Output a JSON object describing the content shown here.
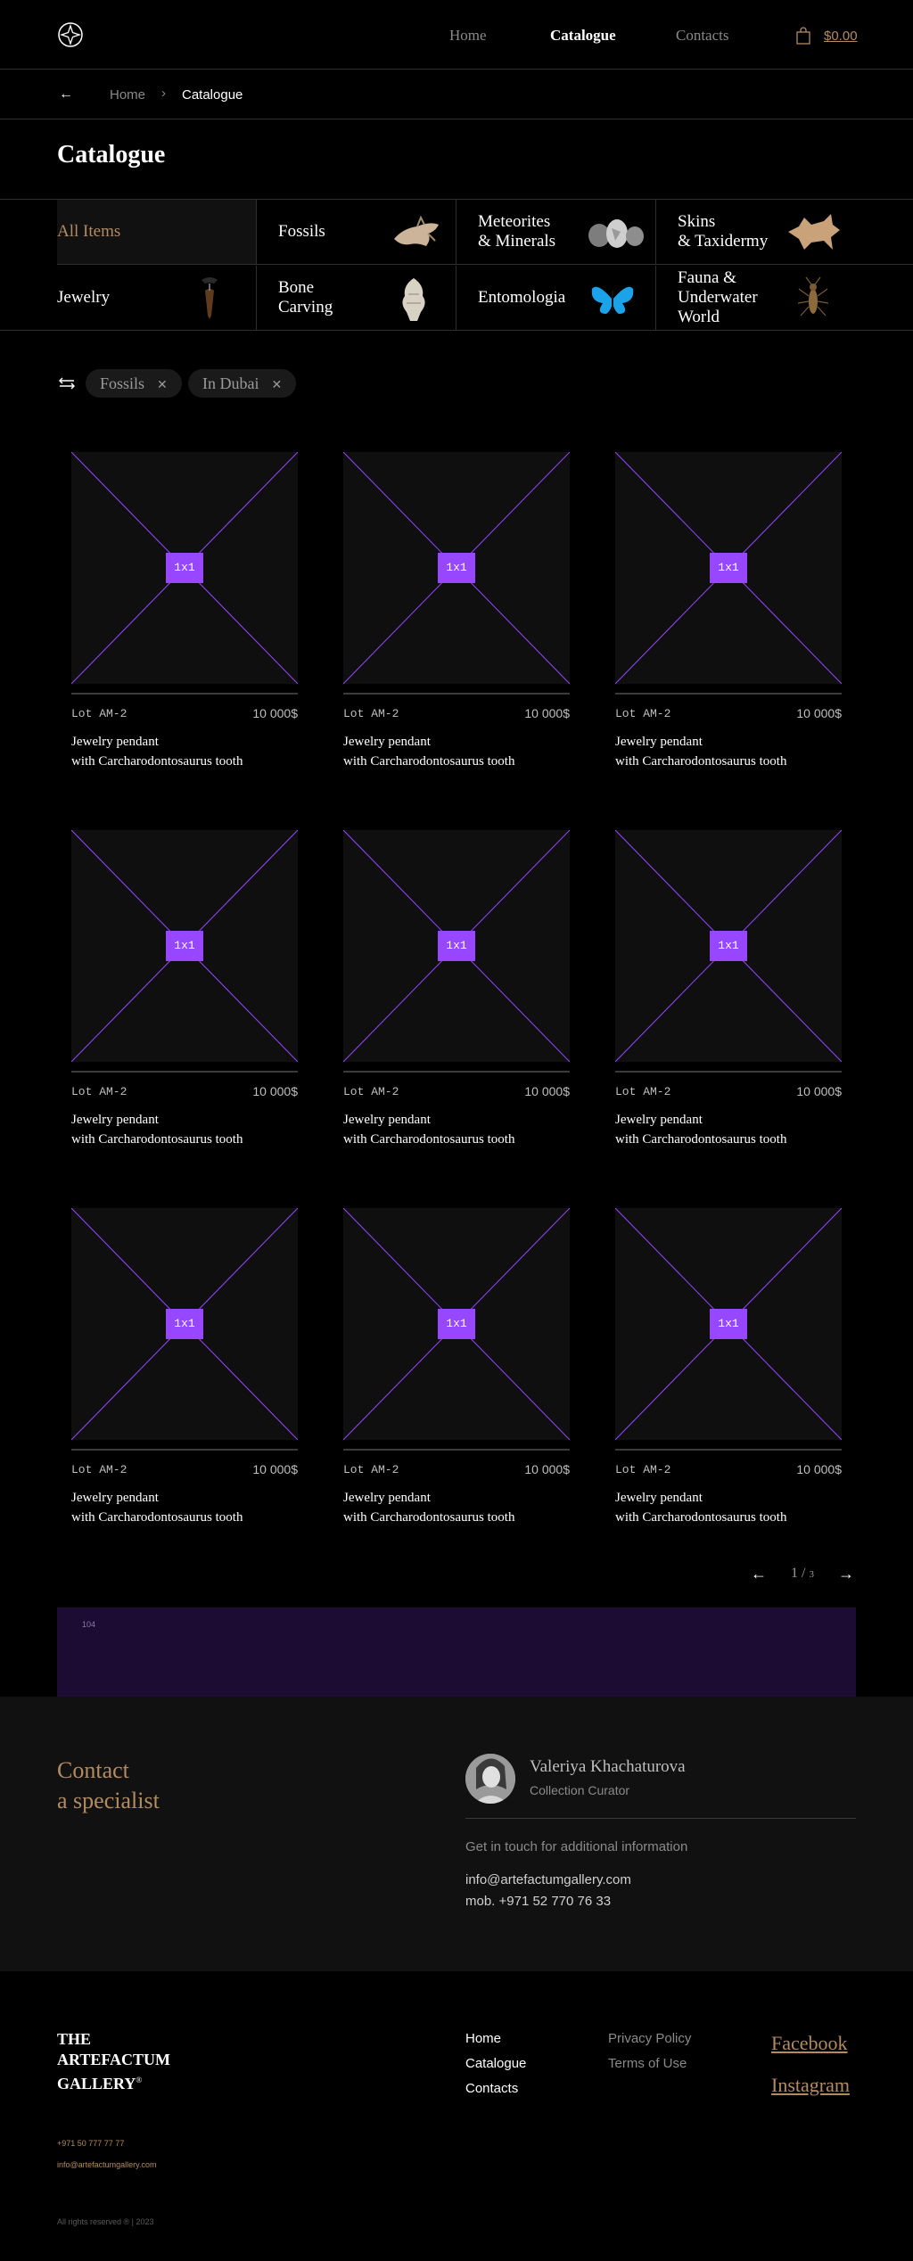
{
  "header": {
    "nav": [
      "Home",
      "Catalogue",
      "Contacts"
    ],
    "cart_total": "$0.00",
    "brand_color": "#b28b61"
  },
  "breadcrumb": {
    "home": "Home",
    "current": "Catalogue"
  },
  "page_title": "Catalogue",
  "categories": [
    "All Items",
    "Fossils",
    "Meteorites\n& Minerals",
    "Skins\n& Taxidermy",
    "Jewelry",
    "Bone\nCarving",
    "Entomologia",
    "Fauna &\nUnderwater\nWorld"
  ],
  "filters": [
    "Fossils",
    "In Dubai"
  ],
  "product": {
    "placeholder": "1x1",
    "lot": "Lot AM-2",
    "price": "10 000$",
    "name_line1": "Jewelry pendant",
    "name_line2": "with Carcharodontosaurus tooth",
    "placeholder_color": "#9747ff"
  },
  "pagination": {
    "current": "1",
    "total": "3"
  },
  "banner_number": "104",
  "contact": {
    "title_line1": "Contact",
    "title_line2": "a specialist",
    "name": "Valeriya Khachaturova",
    "role": "Collection Curator",
    "info": "Get in touch for additional information",
    "email": "info@artefactumgallery.com",
    "mobile": "mob. +971 52 770 76 33"
  },
  "footer": {
    "brand_line1": "THE",
    "brand_line2": "ARTEFACTUM",
    "brand_line3": "GALLERY",
    "brand_mark": "®",
    "nav": [
      "Home",
      "Catalogue",
      "Contacts"
    ],
    "legal": [
      "Privacy Policy",
      "Terms of Use"
    ],
    "social": [
      "Facebook",
      "Instagram"
    ],
    "phone": "+971 50 777 77 77",
    "email": "info@artefactumgallery.com",
    "rights": "All rights reserved ® | 2023"
  }
}
